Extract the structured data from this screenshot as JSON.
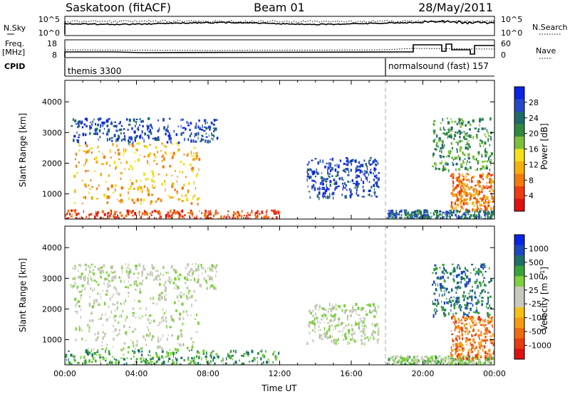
{
  "header": {
    "title": "Saskatoon (fitACF)",
    "beam": "Beam 01",
    "date": "28/May/2011"
  },
  "nsky_panel": {
    "left_label": "N.Sky",
    "left_ticks": [
      "10^5",
      "10^0"
    ],
    "right_label": "N.Search",
    "right_ticks": [
      "10^5",
      "10^0"
    ]
  },
  "freq_panel": {
    "left_label_1": "Freq.",
    "left_label_2": "[MHz]",
    "left_ticks": [
      "18",
      "8"
    ],
    "right_label": "Nave",
    "right_ticks": [
      "60",
      "0"
    ]
  },
  "cpid_panel": {
    "label": "CPID",
    "modes": [
      {
        "name": "themis 3300",
        "start_hour": 0
      },
      {
        "name": "normalsound (fast) 157",
        "start_hour": 18
      }
    ]
  },
  "chart_data": [
    {
      "type": "heatmap",
      "name": "power",
      "ylabel": "Slant Range [km]",
      "yticks": [
        1000,
        2000,
        3000,
        4000
      ],
      "ylim": [
        180,
        4700
      ],
      "xlim": [
        0,
        24
      ],
      "colorbar": {
        "label": "Power [dB]",
        "ticks": [
          "4",
          "8",
          "12",
          "16",
          "20",
          "24",
          "28"
        ],
        "colors": [
          "#0b23e6",
          "#2847c8",
          "#1f6a6b",
          "#2f8a3e",
          "#7ac03c",
          "#f2e018",
          "#f5b00b",
          "#f47a0d",
          "#ee3b10",
          "#e01010"
        ]
      },
      "features": [
        {
          "t0": 0.0,
          "t1": 12.0,
          "r0": 200,
          "r1": 500,
          "level": 8
        },
        {
          "t0": 0.5,
          "t1": 7.5,
          "r0": 700,
          "r1": 2700,
          "level": 6
        },
        {
          "t0": 0.3,
          "t1": 8.5,
          "r0": 2700,
          "r1": 3500,
          "level": 1
        },
        {
          "t0": 13.5,
          "t1": 17.5,
          "r0": 900,
          "r1": 2200,
          "level": 1
        },
        {
          "t0": 18.0,
          "t1": 24.0,
          "r0": 200,
          "r1": 500,
          "level": 2
        },
        {
          "t0": 21.5,
          "t1": 24.0,
          "r0": 500,
          "r1": 1700,
          "level": 7
        },
        {
          "t0": 20.5,
          "t1": 23.8,
          "r0": 1800,
          "r1": 3500,
          "level": 3
        }
      ]
    },
    {
      "type": "heatmap",
      "name": "velocity",
      "ylabel": "Slant Range [km]",
      "xlabel": "Time UT",
      "yticks": [
        1000,
        2000,
        3000,
        4000
      ],
      "xticks": [
        "00:00",
        "04:00",
        "08:00",
        "12:00",
        "16:00",
        "20:00",
        "00:00"
      ],
      "ylim": [
        180,
        4700
      ],
      "xlim": [
        0,
        24
      ],
      "colorbar": {
        "label": "Velocity [m s^-1]",
        "label_main": "Velocity",
        "label_units": "[m s",
        "label_sup": "-1",
        "label_close": "]",
        "ticks": [
          "1000",
          "500",
          "100",
          "25",
          "-25",
          "-100",
          "-500",
          "-1000"
        ],
        "colors": [
          "#0b23e6",
          "#1a48c0",
          "#1f6f6a",
          "#36a33a",
          "#7dd03e",
          "#c8c8bc",
          "#c8c8bc",
          "#f5c015",
          "#f79a10",
          "#f26a10",
          "#ea3a10",
          "#e01010"
        ]
      },
      "features": [
        {
          "t0": 0.0,
          "t1": 12.0,
          "r0": 200,
          "r1": 700,
          "level": 3
        },
        {
          "t0": 0.5,
          "t1": 7.5,
          "r0": 700,
          "r1": 2700,
          "level": 5
        },
        {
          "t0": 0.3,
          "t1": 8.5,
          "r0": 2700,
          "r1": 3500,
          "level": 5
        },
        {
          "t0": 13.5,
          "t1": 17.5,
          "r0": 900,
          "r1": 2200,
          "level": 5
        },
        {
          "t0": 18.0,
          "t1": 24.0,
          "r0": 200,
          "r1": 500,
          "level": 4
        },
        {
          "t0": 21.5,
          "t1": 24.0,
          "r0": 400,
          "r1": 1800,
          "level": 9
        },
        {
          "t0": 20.5,
          "t1": 23.8,
          "r0": 1800,
          "r1": 3500,
          "level": 2
        }
      ]
    }
  ]
}
